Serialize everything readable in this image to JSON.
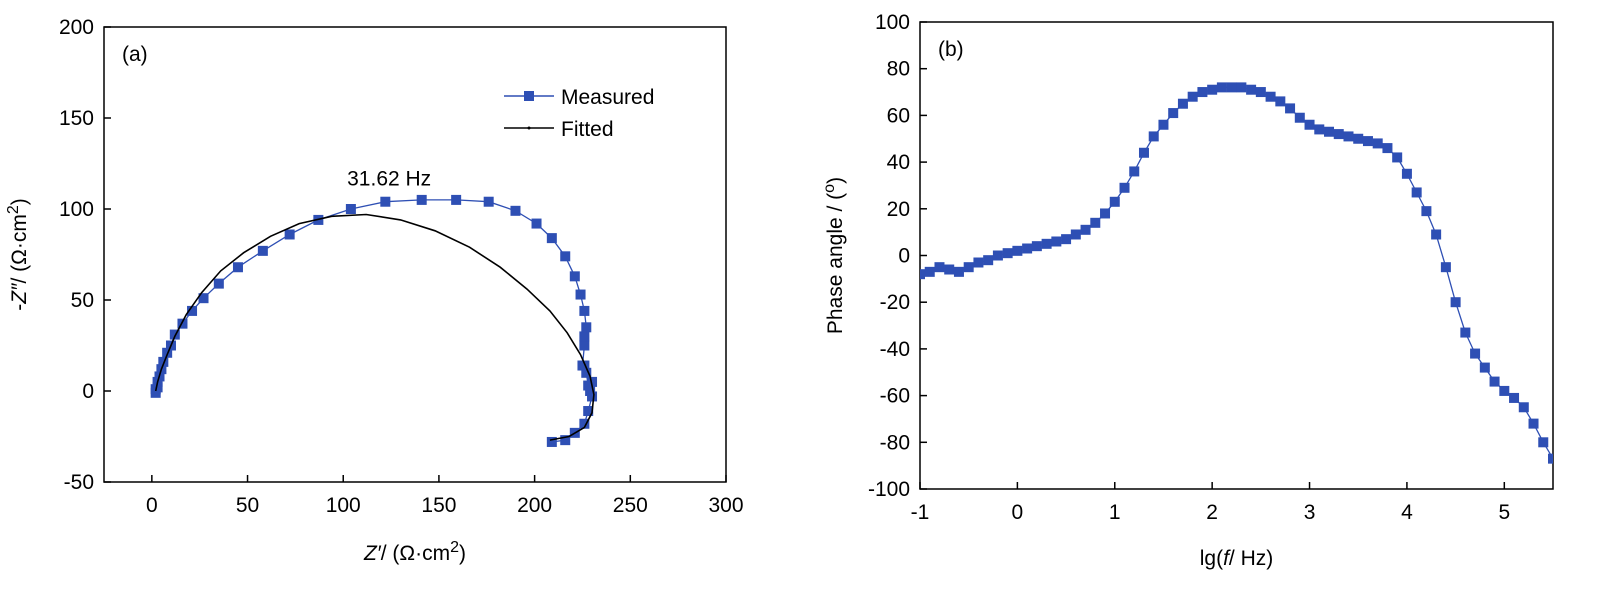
{
  "colors": {
    "measured": "#2e4fb4",
    "fitted": "#000000",
    "axis": "#000000"
  },
  "chart_data": [
    {
      "type": "line",
      "panel_label": "(a)",
      "x_label": {
        "pre": "",
        "italic": "Z′",
        "post": "/ (Ω·cm",
        "sup": "2",
        "tail": ")"
      },
      "y_label": {
        "pre": "-",
        "italic": "Z″",
        "post": "/ (Ω·cm",
        "sup": "2",
        "tail": ")"
      },
      "xlim": [
        -25,
        300
      ],
      "ylim": [
        -50,
        200
      ],
      "xticks": [
        "0",
        "50",
        "100",
        "150",
        "200",
        "250",
        "300"
      ],
      "yticks": [
        "-50",
        "0",
        "50",
        "100",
        "150",
        "200"
      ],
      "annotation": {
        "text": "31.62 Hz",
        "x": 124,
        "y": 113
      },
      "legend_position": "top-right",
      "series": [
        {
          "name": "Measured",
          "marker": "square",
          "x": [
            209,
            216,
            221,
            226,
            228,
            230,
            230,
            229,
            228,
            227,
            226,
            225,
            226,
            226,
            227,
            226,
            224,
            221,
            216,
            209,
            201,
            190,
            176,
            159,
            141,
            122,
            104,
            87,
            72,
            58,
            45,
            35,
            27,
            21,
            16,
            12,
            10,
            8,
            6,
            5,
            4,
            3,
            3,
            2,
            2
          ],
          "y": [
            -28,
            -27,
            -23,
            -18,
            -11,
            -3,
            5,
            0,
            3,
            10,
            14,
            14,
            25,
            30,
            35,
            44,
            53,
            63,
            74,
            84,
            92,
            99,
            104,
            105,
            105,
            104,
            100,
            94,
            86,
            77,
            68,
            59,
            51,
            44,
            37,
            31,
            25,
            21,
            16,
            12,
            8,
            5,
            2,
            1,
            -1
          ]
        },
        {
          "name": "Fitted",
          "marker": "none",
          "x": [
            208,
            218,
            226,
            230,
            231,
            229,
            224,
            217,
            208,
            196,
            182,
            166,
            148,
            130,
            112,
            94,
            77,
            62,
            48,
            36,
            26,
            18,
            12,
            8,
            5,
            3,
            2
          ],
          "y": [
            -27,
            -25,
            -20,
            -12,
            -2,
            8,
            20,
            32,
            44,
            56,
            68,
            79,
            88,
            94,
            97,
            96,
            92,
            85,
            76,
            66,
            54,
            42,
            30,
            20,
            12,
            5,
            0
          ]
        }
      ]
    },
    {
      "type": "line",
      "panel_label": "(b)",
      "x_label": {
        "pre": "lg(",
        "italic": "f",
        "post": "/ Hz)",
        "sup": "",
        "tail": ""
      },
      "y_label": {
        "pre": "Phase angle / (",
        "italic": "",
        "post": "",
        "sup": "o",
        "tail": ")"
      },
      "xlim": [
        -1,
        5.5
      ],
      "ylim": [
        -100,
        100
      ],
      "xticks": [
        "-1",
        "0",
        "1",
        "2",
        "3",
        "4",
        "5"
      ],
      "yticks": [
        "-100",
        "-80",
        "-60",
        "-40",
        "-20",
        "0",
        "20",
        "40",
        "60",
        "80",
        "100"
      ],
      "series": [
        {
          "name": "Phase angle",
          "marker": "square",
          "x": [
            -1.0,
            -0.9,
            -0.8,
            -0.7,
            -0.6,
            -0.5,
            -0.4,
            -0.3,
            -0.2,
            -0.1,
            0.0,
            0.1,
            0.2,
            0.3,
            0.4,
            0.5,
            0.6,
            0.7,
            0.8,
            0.9,
            1.0,
            1.1,
            1.2,
            1.3,
            1.4,
            1.5,
            1.6,
            1.7,
            1.8,
            1.9,
            2.0,
            2.1,
            2.2,
            2.3,
            2.4,
            2.5,
            2.6,
            2.7,
            2.8,
            2.9,
            3.0,
            3.1,
            3.2,
            3.3,
            3.4,
            3.5,
            3.6,
            3.7,
            3.8,
            3.9,
            4.0,
            4.1,
            4.2,
            4.3,
            4.4,
            4.5,
            4.6,
            4.7,
            4.8,
            4.9,
            5.0,
            5.1,
            5.2,
            5.3,
            5.4,
            5.5
          ],
          "y": [
            -8,
            -7,
            -5,
            -6,
            -7,
            -5,
            -3,
            -2,
            0,
            1,
            2,
            3,
            4,
            5,
            6,
            7,
            9,
            11,
            14,
            18,
            23,
            29,
            36,
            44,
            51,
            56,
            61,
            65,
            68,
            70,
            71,
            72,
            72,
            72,
            71,
            70,
            68,
            66,
            63,
            59,
            56,
            54,
            53,
            52,
            51,
            50,
            49,
            48,
            46,
            42,
            35,
            27,
            19,
            9,
            -5,
            -20,
            -33,
            -42,
            -48,
            -54,
            -58,
            -61,
            -65,
            -72,
            -80,
            -87
          ]
        }
      ]
    }
  ]
}
